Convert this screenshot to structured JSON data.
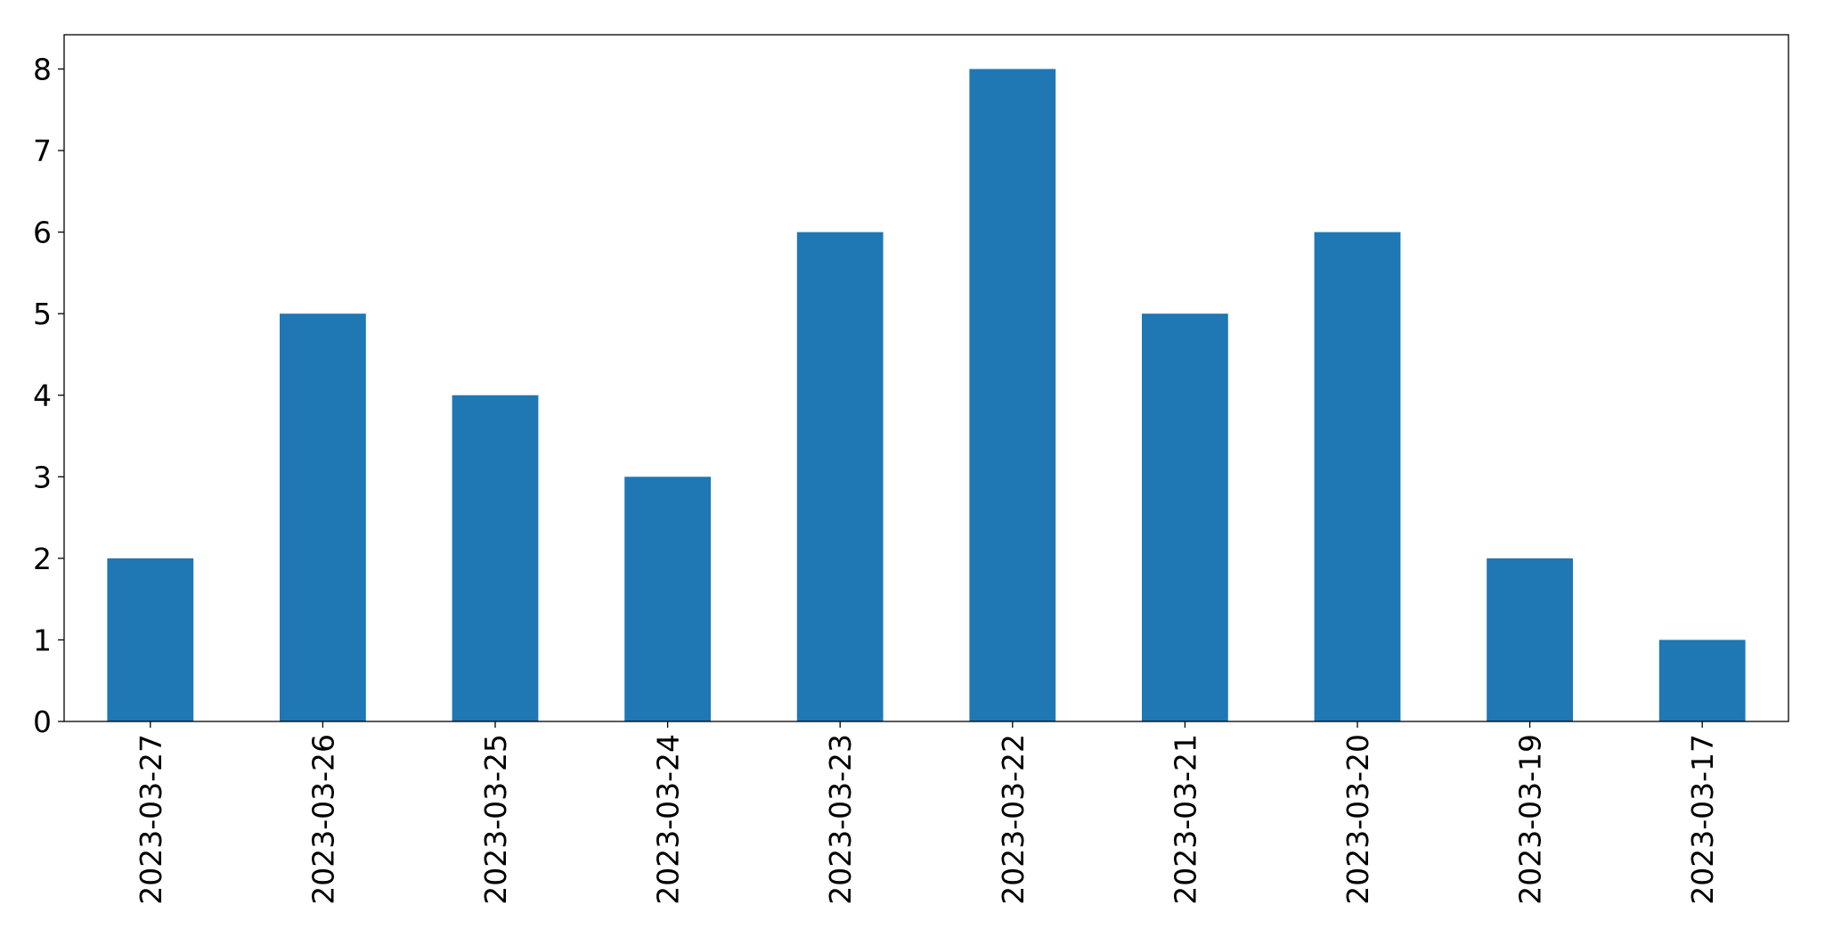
{
  "chart_data": {
    "type": "bar",
    "categories": [
      "2023-03-27",
      "2023-03-26",
      "2023-03-25",
      "2023-03-24",
      "2023-03-23",
      "2023-03-22",
      "2023-03-21",
      "2023-03-20",
      "2023-03-19",
      "2023-03-17"
    ],
    "values": [
      2,
      5,
      4,
      3,
      6,
      8,
      5,
      6,
      2,
      1
    ],
    "color": "#1f77b4",
    "ylim": [
      0,
      8.42
    ],
    "yticks": [
      0,
      1,
      2,
      3,
      4,
      5,
      6,
      7,
      8
    ],
    "grid": false
  }
}
